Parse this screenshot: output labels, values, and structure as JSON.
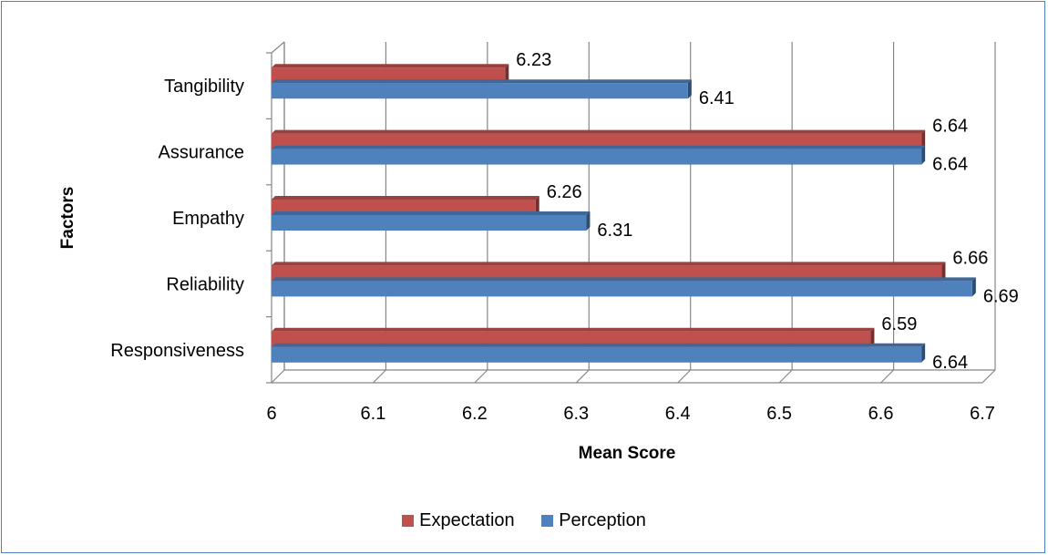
{
  "chart_data": {
    "type": "bar",
    "orientation": "horizontal",
    "categories": [
      "Responsiveness",
      "Reliability",
      "Empathy",
      "Assurance",
      "Tangibility"
    ],
    "series": [
      {
        "name": "Expectation",
        "color": "#c0504d",
        "values": [
          6.59,
          6.66,
          6.26,
          6.64,
          6.23
        ]
      },
      {
        "name": "Perception",
        "color": "#4f81bd",
        "values": [
          6.64,
          6.69,
          6.31,
          6.64,
          6.41
        ]
      }
    ],
    "xlabel": "Mean Score",
    "ylabel": "Factors",
    "xlim": [
      6,
      6.7
    ],
    "xticks": [
      "6",
      "6.1",
      "6.2",
      "6.3",
      "6.4",
      "6.5",
      "6.6",
      "6.7"
    ],
    "grid": true,
    "legend_position": "bottom"
  }
}
